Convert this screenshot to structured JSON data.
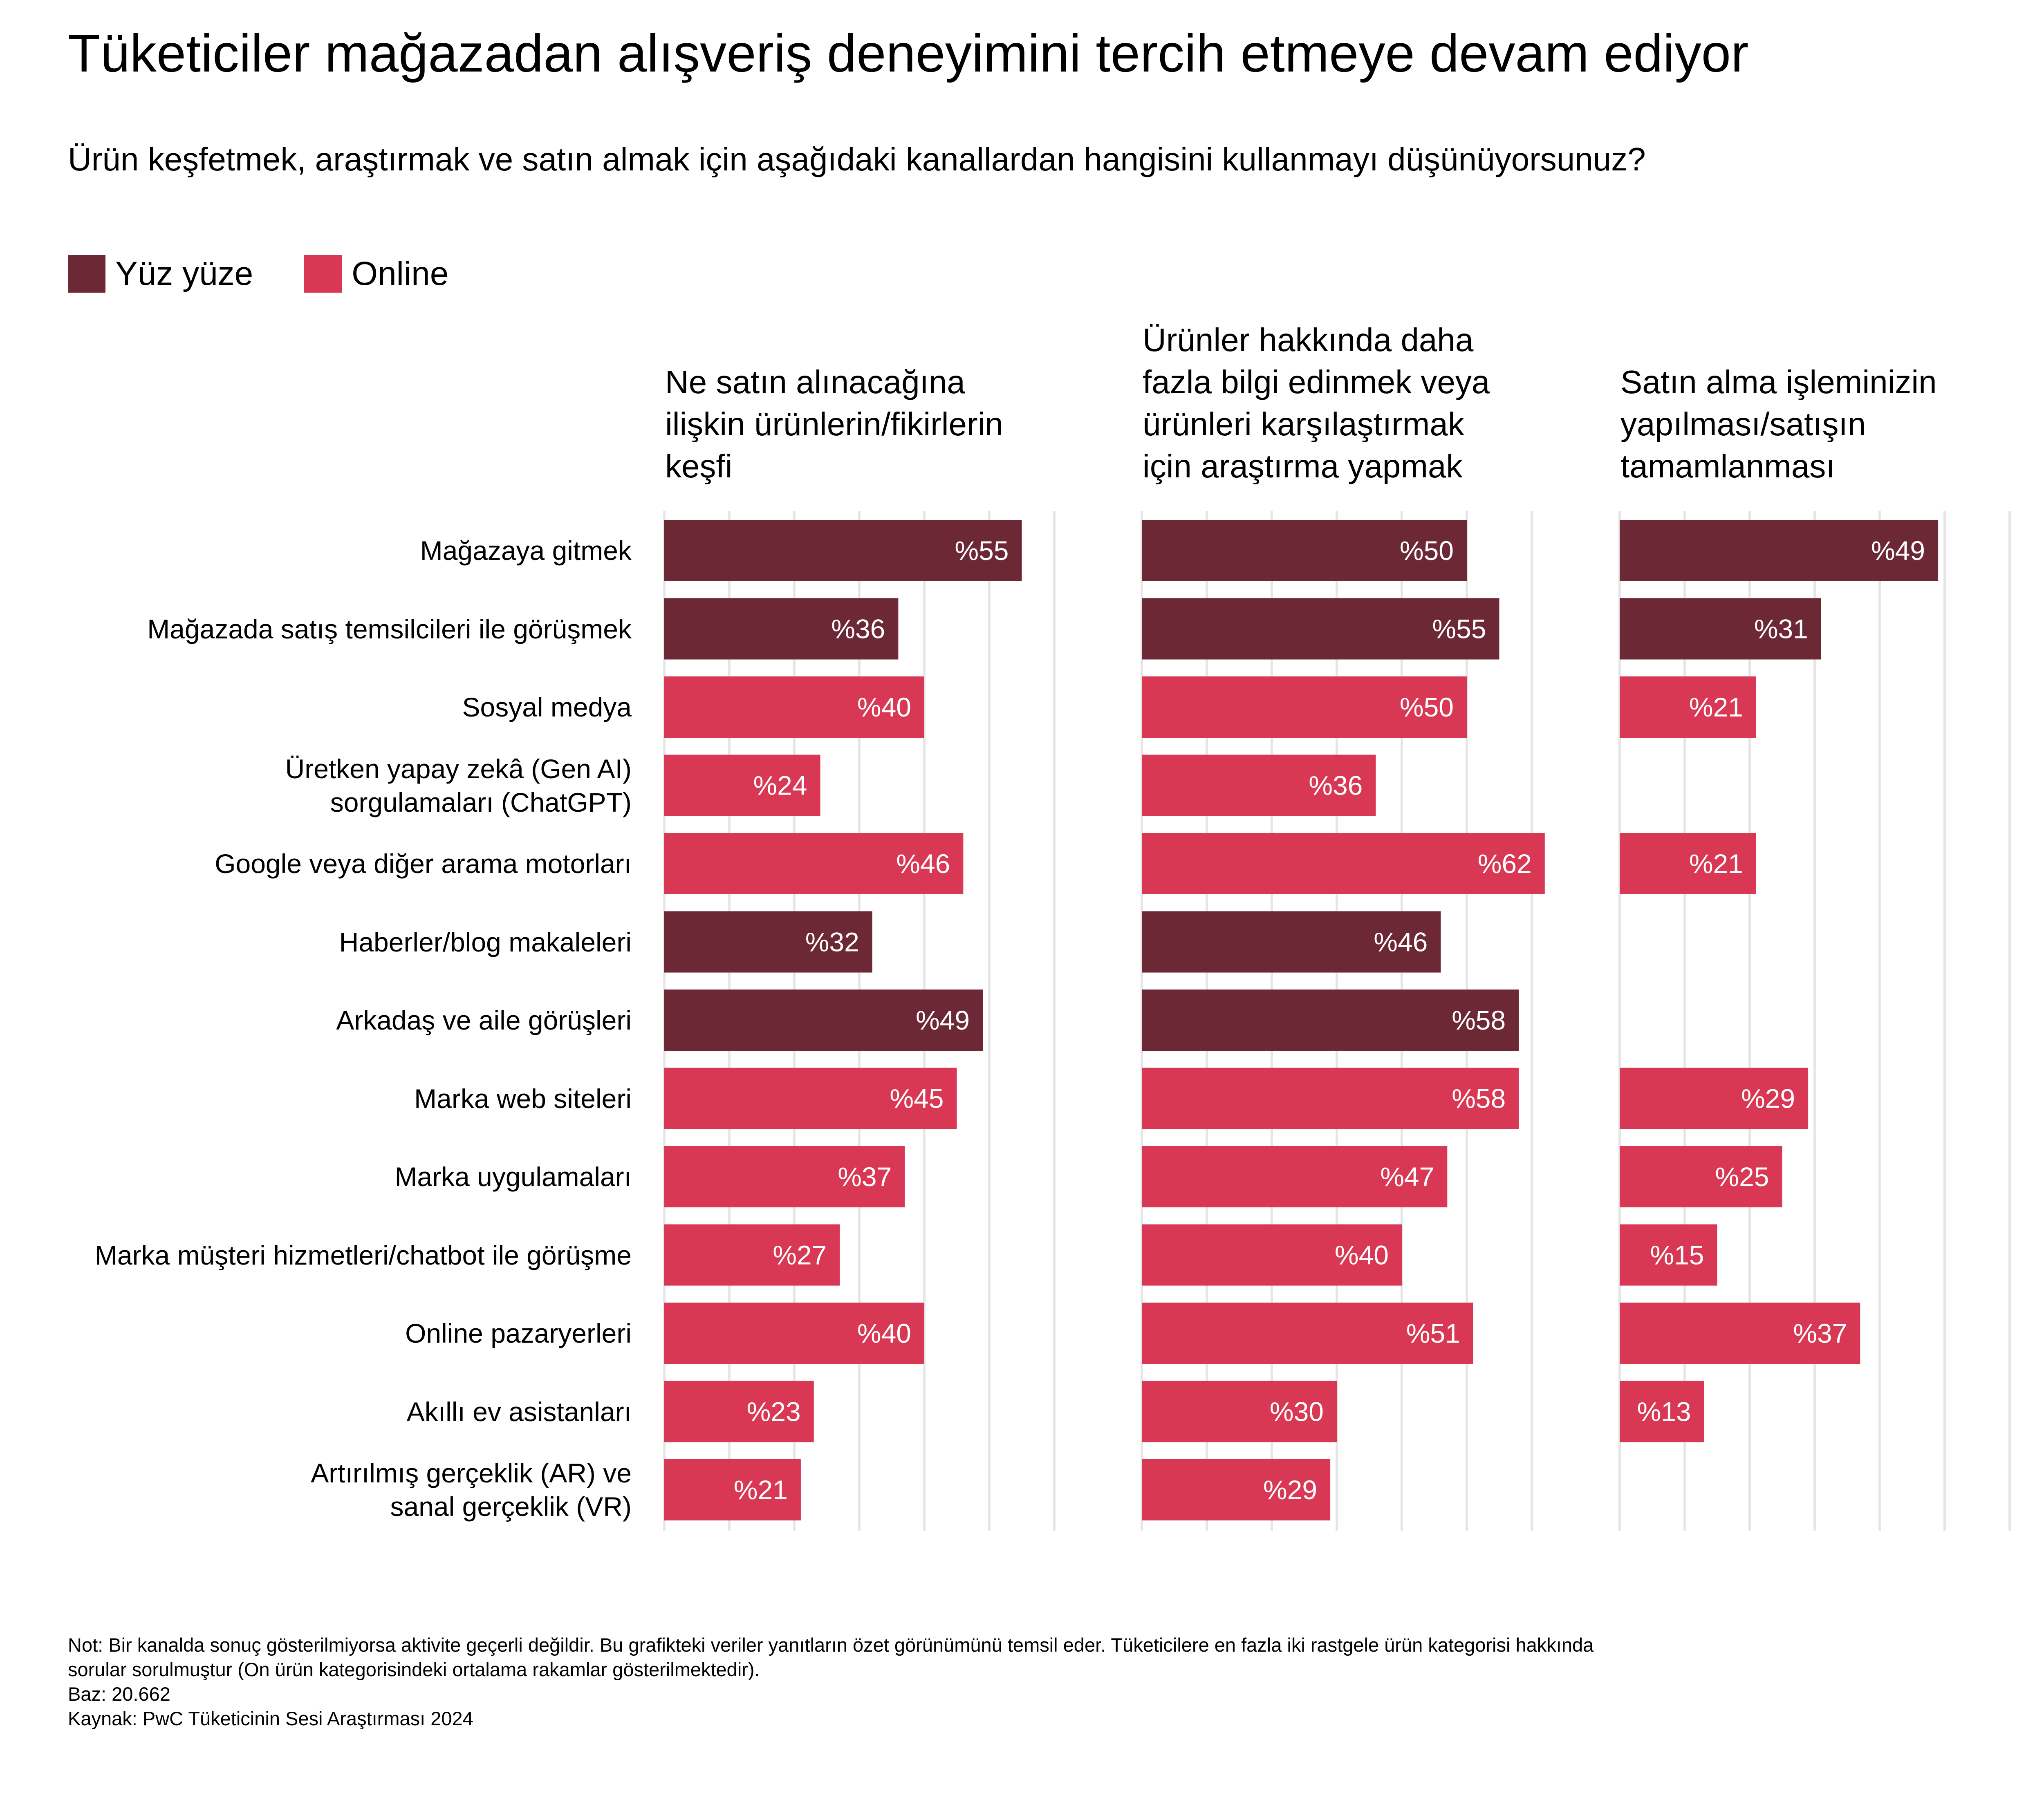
{
  "colors": {
    "yuz_yuze": "#6d2836",
    "online": "#d93854",
    "grid": "#e6e6e6",
    "value_label": "#ffffff"
  },
  "title": "Tüketiciler mağazadan alışveriş deneyimini tercih etmeye devam ediyor",
  "subtitle": "Ürün keşfetmek, araştırmak ve satın almak için aşağıdaki kanallardan hangisini kullanmayı düşünüyorsunuz?",
  "legend": [
    {
      "label": "Yüz yüze",
      "color_key": "yuz_yuze"
    },
    {
      "label": "Online",
      "color_key": "online"
    }
  ],
  "footer": {
    "note_line1": "Not: Bir kanalda sonuç gösterilmiyorsa aktivite geçerli değildir. Bu grafikteki veriler yanıtların özet görünümünü temsil eder. Tüketicilere en fazla iki rastgele ürün kategorisi hakkında",
    "note_line2": "sorular sorulmuştur (On ürün kategorisindeki ortalama rakamlar gösterilmektedir).",
    "base": "Baz: 20.662",
    "source": "Kaynak: PwC Tüketicinin Sesi Araştırması 2024"
  },
  "chart_data": {
    "type": "bar",
    "orientation": "horizontal",
    "value_prefix": "%",
    "categories": [
      {
        "label": "Mağazaya gitmek",
        "channel": "Yüz yüze"
      },
      {
        "label": "Mağazada satış temsilcileri ile görüşmek",
        "channel": "Yüz yüze"
      },
      {
        "label": "Sosyal medya",
        "channel": "Online"
      },
      {
        "label": "Üretken yapay zekâ (Gen AI)\nsorgulamaları (ChatGPT)",
        "channel": "Online"
      },
      {
        "label": "Google veya diğer arama motorları",
        "channel": "Online"
      },
      {
        "label": "Haberler/blog makaleleri",
        "channel": "Yüz yüze"
      },
      {
        "label": "Arkadaş ve aile görüşleri",
        "channel": "Yüz yüze"
      },
      {
        "label": "Marka web siteleri",
        "channel": "Online"
      },
      {
        "label": "Marka uygulamaları",
        "channel": "Online"
      },
      {
        "label": "Marka müşteri hizmetleri/chatbot ile görüşme",
        "channel": "Online"
      },
      {
        "label": "Online pazaryerleri",
        "channel": "Online"
      },
      {
        "label": "Akıllı ev asistanları",
        "channel": "Online"
      },
      {
        "label": "Artırılmış gerçeklik (AR) ve\nsanal gerçeklik (VR)",
        "channel": "Online"
      }
    ],
    "panels": [
      {
        "title": "Ne satın alınacağına\nilişkin ürünlerin/fikirlerin\nkeşfi",
        "values": [
          55,
          36,
          40,
          24,
          46,
          32,
          49,
          45,
          37,
          27,
          40,
          23,
          21
        ]
      },
      {
        "title": "Ürünler hakkında daha\nfazla bilgi edinmek veya\nürünleri karşılaştırmak\niçin araştırma yapmak",
        "values": [
          50,
          55,
          50,
          36,
          62,
          46,
          58,
          58,
          47,
          40,
          51,
          30,
          29
        ]
      },
      {
        "title": "Satın alma işleminizin\nyapılması/satışın\ntamamlanması",
        "values": [
          49,
          31,
          21,
          null,
          21,
          null,
          null,
          29,
          25,
          15,
          37,
          13,
          null
        ]
      }
    ],
    "xlim": [
      0,
      60
    ],
    "grid": true,
    "legend_position": "top-left"
  }
}
